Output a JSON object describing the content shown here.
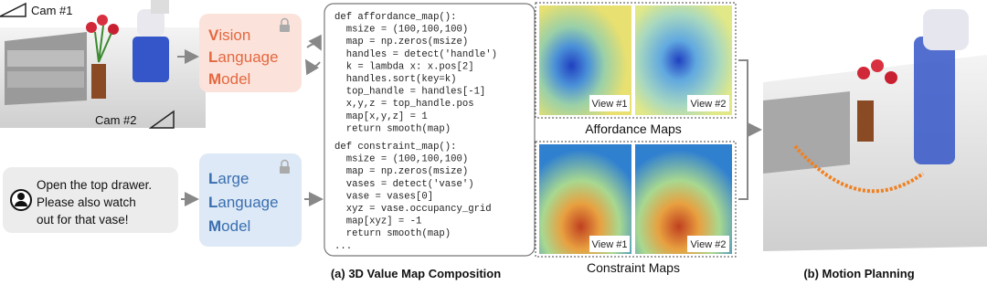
{
  "scene": {
    "cam1": "Cam #1",
    "cam2": "Cam #2"
  },
  "instruction": [
    "Open the top drawer.",
    "Please also watch",
    "out for that vase!"
  ],
  "vlm": [
    {
      "initial": "V",
      "rest": "ision"
    },
    {
      "initial": "L",
      "rest": "anguage"
    },
    {
      "initial": "M",
      "rest": "odel"
    }
  ],
  "llm": [
    {
      "initial": "L",
      "rest": "arge"
    },
    {
      "initial": "L",
      "rest": "anguage"
    },
    {
      "initial": "M",
      "rest": "odel"
    }
  ],
  "code": [
    "def affordance_map():",
    "  msize = (100,100,100)",
    "  map = np.zeros(msize)",
    "  handles = detect('handle')",
    "  k = lambda x: x.pos[2]",
    "  handles.sort(key=k)",
    "  top_handle = handles[-1]",
    "  x,y,z = top_handle.pos",
    "  map[x,y,z] = 1",
    "  return smooth(map)",
    "def constraint_map():",
    "  msize = (100,100,100)",
    "  map = np.zeros(msize)",
    "  vases = detect('vase')",
    "  vase = vases[0]",
    "  xyz = vase.occupancy_grid",
    "  map[xyz] = -1",
    "  return smooth(map)",
    "..."
  ],
  "affordance": {
    "views": [
      "View #1",
      "View #2"
    ],
    "caption": "Affordance Maps"
  },
  "constraint": {
    "views": [
      "View #1",
      "View #2"
    ],
    "caption": "Constraint Maps"
  },
  "captions": {
    "a": "(a) 3D Value Map Composition",
    "b": "(b) Motion Planning"
  }
}
